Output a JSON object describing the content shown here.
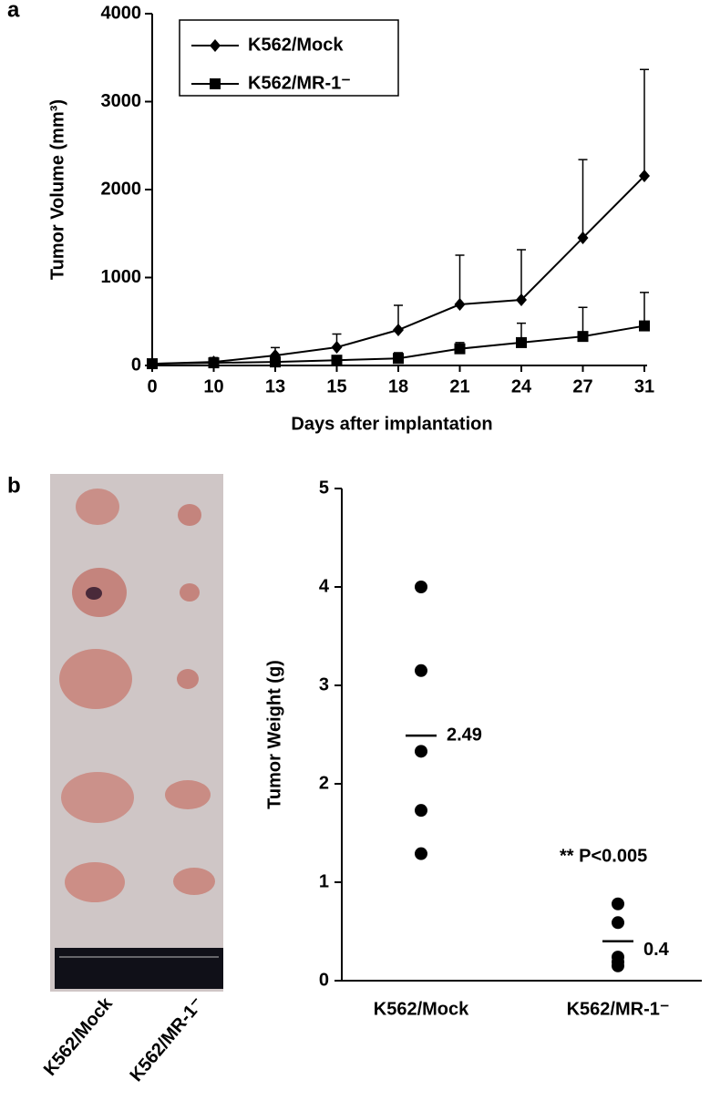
{
  "chart_data": [
    {
      "type": "line",
      "panel": "a",
      "x_label": "Days after implantation",
      "y_label": "Tumor Volume (mm³)",
      "categories": [
        "0",
        "10",
        "13",
        "15",
        "18",
        "21",
        "24",
        "27",
        "31"
      ],
      "series": [
        {
          "name": "K562/Mock",
          "color": "#000000",
          "marker": "diamond",
          "values": [
            20,
            40,
            114,
            207,
            404,
            694,
            746,
            1451,
            2155
          ],
          "errors": [
            0,
            50,
            90,
            150,
            280,
            560,
            570,
            890,
            1210
          ]
        },
        {
          "name": "K562/MR-1⁻",
          "color": "#000000",
          "marker": "square",
          "values": [
            20,
            30,
            40,
            60,
            80,
            190,
            260,
            330,
            450
          ],
          "errors": [
            0,
            10,
            20,
            30,
            65,
            70,
            220,
            330,
            380
          ]
        }
      ],
      "ylim": [
        0,
        4000
      ],
      "yticks": [
        0,
        1000,
        2000,
        3000,
        4000
      ],
      "legend": "top-left"
    },
    {
      "type": "dot",
      "panel": "b",
      "y_label": "Tumor Weight (g)",
      "categories": [
        "K562/Mock",
        "K562/MR-1⁻"
      ],
      "points": [
        [
          4.0,
          3.15,
          2.33,
          1.73,
          1.29
        ],
        [
          0.78,
          0.59,
          0.24,
          0.19,
          0.15
        ]
      ],
      "means": [
        2.49,
        0.4
      ],
      "annotation": "** P<0.005",
      "color": "#000000",
      "ylim": [
        0,
        5
      ],
      "yticks": [
        0,
        1,
        2,
        3,
        4,
        5
      ]
    }
  ]
}
